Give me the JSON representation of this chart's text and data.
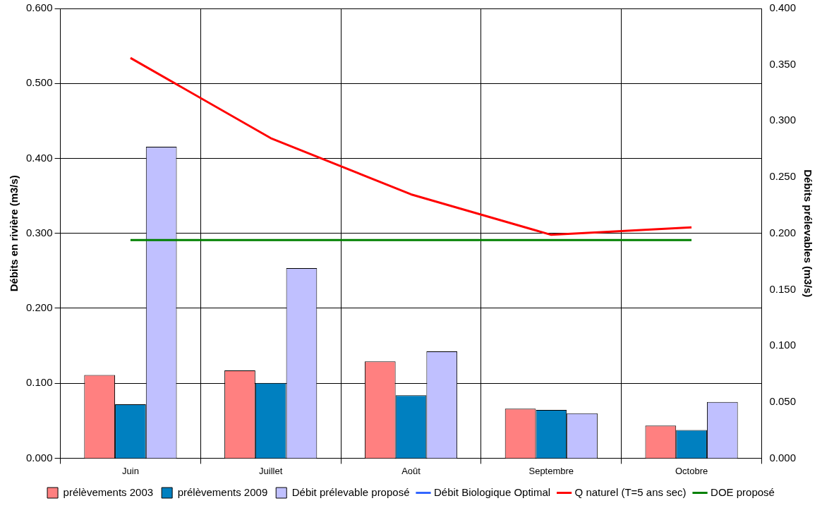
{
  "chart_data": {
    "type": "bar",
    "categories": [
      "Juin",
      "Juillet",
      "Août",
      "Septembre",
      "Octobre"
    ],
    "ylabel": "Débits en rivière (m3/s)",
    "y2label": "Débits prélevables (m3/s)",
    "ylim": [
      0,
      0.6
    ],
    "yticks": [
      {
        "value": 0,
        "label": "0.000"
      },
      {
        "value": 0.1,
        "label": "0.100"
      },
      {
        "value": 0.2,
        "label": "0.200"
      },
      {
        "value": 0.3,
        "label": "0.300"
      },
      {
        "value": 0.4,
        "label": "0.400"
      },
      {
        "value": 0.5,
        "label": "0.500"
      },
      {
        "value": 0.6,
        "label": "0.600"
      }
    ],
    "y2lim": [
      0,
      0.4
    ],
    "y2ticks": [
      {
        "value": 0,
        "label": "0.000"
      },
      {
        "value": 0.05,
        "label": "0.050"
      },
      {
        "value": 0.1,
        "label": "0.100"
      },
      {
        "value": 0.15,
        "label": "0.150"
      },
      {
        "value": 0.2,
        "label": "0.200"
      },
      {
        "value": 0.25,
        "label": "0.250"
      },
      {
        "value": 0.3,
        "label": "0.300"
      },
      {
        "value": 0.35,
        "label": "0.350"
      },
      {
        "value": 0.4,
        "label": "0.400"
      }
    ],
    "grid": true,
    "legend": "bottom",
    "marker": "none",
    "line_style": "solid",
    "series": [
      {
        "name": "prélèvements 2003",
        "axis": "y2",
        "color": "#ff8080",
        "values": [
          0.074,
          0.078,
          0.086,
          0.044,
          0.029
        ]
      },
      {
        "name": "prélèvements 2009",
        "axis": "y2",
        "color": "#0080c0",
        "values": [
          0.048,
          0.067,
          0.056,
          0.043,
          0.025
        ]
      },
      {
        "name": "Débit prélevable proposé",
        "axis": "y2",
        "color": "#c0c0ff",
        "values": [
          0.277,
          0.169,
          0.095,
          0.04,
          0.05
        ]
      },
      {
        "name": "Débit Biologique Optimal",
        "type": "line",
        "color": "#3366ff",
        "values": [
          null,
          null,
          null,
          null,
          null
        ]
      },
      {
        "name": "Q naturel (T=5 ans sec)",
        "type": "line",
        "color": "#ff0000",
        "values": [
          0.534,
          0.427,
          0.352,
          0.298,
          0.308
        ]
      },
      {
        "name": "DOE proposé",
        "type": "line",
        "color": "#008000",
        "values": [
          0.291,
          0.291,
          0.291,
          0.291,
          0.291
        ]
      }
    ]
  }
}
